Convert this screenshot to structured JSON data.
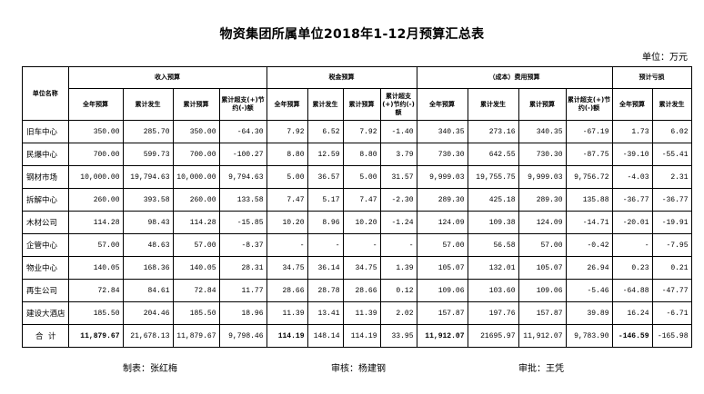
{
  "title": "物资集团所属单位2018年1-12月预算汇总表",
  "unit_label": "单位：万元",
  "table": {
    "name_header": "单位名称",
    "groups": [
      "收入预算",
      "税金预算",
      "（成本）费用预算",
      "预计亏损"
    ],
    "group_spans": [
      4,
      4,
      4,
      2
    ],
    "sub_headers": [
      "全年预算",
      "累计发生",
      "累计预算",
      "累计超支(+)节约(-)额",
      "全年预算",
      "累计发生",
      "累计预算",
      "累计超支(+)节约(-)额",
      "全年预算",
      "累计发生",
      "累计预算",
      "累计超支(+)节约(-)额",
      "全年预算",
      "累计发生"
    ],
    "rows": [
      {
        "name": "旧车中心",
        "values": [
          "350.00",
          "285.70",
          "350.00",
          "-64.30",
          "7.92",
          "6.52",
          "7.92",
          "-1.40",
          "340.35",
          "273.16",
          "340.35",
          "-67.19",
          "1.73",
          "6.02"
        ]
      },
      {
        "name": "民爆中心",
        "values": [
          "700.00",
          "599.73",
          "700.00",
          "-100.27",
          "8.80",
          "12.59",
          "8.80",
          "3.79",
          "730.30",
          "642.55",
          "730.30",
          "-87.75",
          "-39.10",
          "-55.41"
        ]
      },
      {
        "name": "钢材市场",
        "values": [
          "10,000.00",
          "19,794.63",
          "10,000.00",
          "9,794.63",
          "5.00",
          "36.57",
          "5.00",
          "31.57",
          "9,999.03",
          "19,755.75",
          "9,999.03",
          "9,756.72",
          "-4.03",
          "2.31"
        ]
      },
      {
        "name": "拆解中心",
        "values": [
          "260.00",
          "393.58",
          "260.00",
          "133.58",
          "7.47",
          "5.17",
          "7.47",
          "-2.30",
          "289.30",
          "425.18",
          "289.30",
          "135.88",
          "-36.77",
          "-36.77"
        ]
      },
      {
        "name": "木材公司",
        "values": [
          "114.28",
          "98.43",
          "114.28",
          "-15.85",
          "10.20",
          "8.96",
          "10.20",
          "-1.24",
          "124.09",
          "109.38",
          "124.09",
          "-14.71",
          "-20.01",
          "-19.91"
        ]
      },
      {
        "name": "企管中心",
        "values": [
          "57.00",
          "48.63",
          "57.00",
          "-8.37",
          "-",
          "-",
          "-",
          "-",
          "57.00",
          "56.58",
          "57.00",
          "-0.42",
          "-",
          "-7.95"
        ]
      },
      {
        "name": "物业中心",
        "values": [
          "140.05",
          "168.36",
          "140.05",
          "28.31",
          "34.75",
          "36.14",
          "34.75",
          "1.39",
          "105.07",
          "132.01",
          "105.07",
          "26.94",
          "0.23",
          "0.21"
        ]
      },
      {
        "name": "再生公司",
        "values": [
          "72.84",
          "84.61",
          "72.84",
          "11.77",
          "28.66",
          "28.78",
          "28.66",
          "0.12",
          "109.06",
          "103.60",
          "109.06",
          "-5.46",
          "-64.88",
          "-47.77"
        ]
      },
      {
        "name": "建设大酒店",
        "values": [
          "185.50",
          "204.46",
          "185.50",
          "18.96",
          "11.39",
          "13.41",
          "11.39",
          "2.02",
          "157.87",
          "197.76",
          "157.87",
          "39.89",
          "16.24",
          "-6.71"
        ]
      },
      {
        "name": "合  计",
        "values": [
          "11,879.67",
          "21,678.13",
          "11,879.67",
          "9,798.46",
          "114.19",
          "148.14",
          "114.19",
          "33.95",
          "11,912.07",
          "21695.97",
          "11,912.07",
          "9,783.90",
          "-146.59",
          "-165.98"
        ],
        "bold_columns": [
          0,
          4,
          8,
          12
        ]
      }
    ]
  },
  "footer": {
    "prepared": "制表：张红梅",
    "reviewed": "审核：杨建钢",
    "approved": "审批：王凭"
  }
}
